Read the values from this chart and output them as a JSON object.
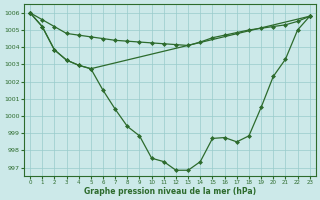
{
  "title": "Graphe pression niveau de la mer (hPa)",
  "background_color": "#cce9e9",
  "grid_color": "#99cccc",
  "line_color": "#2d6b2d",
  "marker_color": "#2d6b2d",
  "ylim": [
    996.5,
    1006.5
  ],
  "yticks": [
    997,
    998,
    999,
    1000,
    1001,
    1002,
    1003,
    1004,
    1005,
    1006
  ],
  "xlim": [
    -0.5,
    23.5
  ],
  "xticks": [
    0,
    1,
    2,
    3,
    4,
    5,
    6,
    7,
    8,
    9,
    10,
    11,
    12,
    13,
    14,
    15,
    16,
    17,
    18,
    19,
    20,
    21,
    22,
    23
  ],
  "series1_x": [
    0,
    1,
    2,
    3,
    4,
    5,
    6,
    7,
    8,
    9,
    10,
    11,
    12,
    13,
    14,
    15,
    16,
    17,
    18,
    19,
    20,
    21,
    22,
    23
  ],
  "series1_y": [
    1006.0,
    1005.6,
    1005.2,
    1004.8,
    1004.7,
    1004.6,
    1004.5,
    1004.4,
    1004.35,
    1004.3,
    1004.25,
    1004.2,
    1004.15,
    1004.1,
    1004.3,
    1004.55,
    1004.7,
    1004.85,
    1005.0,
    1005.1,
    1005.2,
    1005.3,
    1005.5,
    1005.8
  ],
  "series2_x": [
    0,
    1,
    2,
    3,
    4,
    5,
    6,
    7,
    8,
    9,
    10,
    11,
    12,
    13,
    14,
    15,
    16,
    17,
    18,
    19,
    20,
    21,
    22,
    23
  ],
  "series2_y": [
    1006.0,
    1005.2,
    1003.85,
    1003.25,
    1002.95,
    1002.75,
    1001.5,
    1000.4,
    999.4,
    998.85,
    997.55,
    997.35,
    996.85,
    996.85,
    997.35,
    998.7,
    998.75,
    998.5,
    998.85,
    1000.5,
    1002.3,
    1003.3,
    1005.0,
    1005.8
  ],
  "series3_x": [
    0,
    1,
    2,
    3,
    4,
    5,
    23
  ],
  "series3_y": [
    1006.0,
    1005.2,
    1003.85,
    1003.25,
    1002.95,
    1002.75,
    1005.8
  ]
}
